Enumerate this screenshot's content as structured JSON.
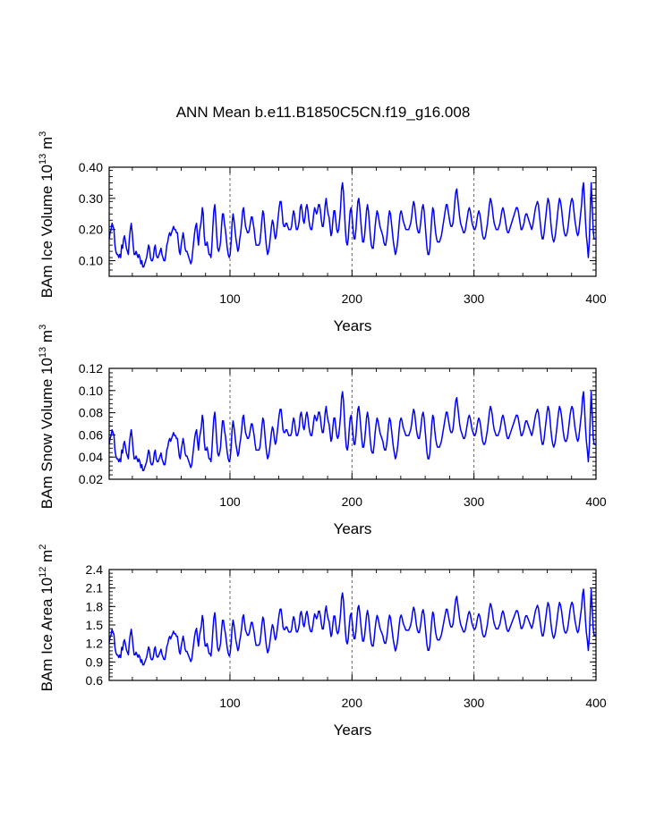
{
  "figure_title": "ANN Mean b.e11.B1850C5CN.f19_g16.008",
  "colors": {
    "series": "#0000ff",
    "axis": "#000000",
    "refline": "#555555"
  },
  "chart_data": [
    {
      "type": "line",
      "title": "ANN Mean b.e11.B1850C5CN.f19_g16.008",
      "ylabel_text": "BAm Ice Volume 10",
      "ylabel_exp": "13",
      "ylabel_unit": "m",
      "ylabel_unit_exp": "3",
      "xlabel": "Years",
      "xlim": [
        1,
        400
      ],
      "ylim": [
        0.05,
        0.4
      ],
      "yticks": [
        0.1,
        0.2,
        0.3,
        0.4
      ],
      "ytick_labels": [
        "0.10",
        "0.20",
        "0.30",
        "0.40"
      ],
      "xticks": [
        100,
        200,
        300,
        400
      ],
      "xtick_labels": [
        "100",
        "200",
        "300",
        "400"
      ],
      "reference_lines_x": [
        100,
        200,
        300
      ],
      "series": [
        {
          "name": "BAm Ice Volume",
          "values": [
            0.17,
            0.19,
            0.2,
            0.22,
            0.21,
            0.2,
            0.15,
            0.13,
            0.12,
            0.12,
            0.11,
            0.12,
            0.11,
            0.15,
            0.14,
            0.17,
            0.18,
            0.16,
            0.14,
            0.13,
            0.12,
            0.17,
            0.2,
            0.22,
            0.19,
            0.15,
            0.12,
            0.12,
            0.13,
            0.12,
            0.11,
            0.12,
            0.11,
            0.09,
            0.1,
            0.08,
            0.08,
            0.09,
            0.1,
            0.11,
            0.13,
            0.15,
            0.14,
            0.11,
            0.1,
            0.1,
            0.11,
            0.14,
            0.15,
            0.12,
            0.11,
            0.11,
            0.12,
            0.13,
            0.14,
            0.12,
            0.11,
            0.1,
            0.1,
            0.12,
            0.15,
            0.16,
            0.18,
            0.19,
            0.18,
            0.19,
            0.2,
            0.21,
            0.2,
            0.2,
            0.19,
            0.19,
            0.16,
            0.13,
            0.12,
            0.15,
            0.17,
            0.19,
            0.17,
            0.14,
            0.13,
            0.13,
            0.12,
            0.11,
            0.1,
            0.09,
            0.1,
            0.13,
            0.16,
            0.19,
            0.21,
            0.22,
            0.18,
            0.15,
            0.19,
            0.21,
            0.23,
            0.27,
            0.25,
            0.18,
            0.15,
            0.15,
            0.16,
            0.14,
            0.12,
            0.12,
            0.11,
            0.15,
            0.21,
            0.26,
            0.28,
            0.24,
            0.18,
            0.14,
            0.13,
            0.14,
            0.16,
            0.21,
            0.25,
            0.25,
            0.22,
            0.2,
            0.17,
            0.14,
            0.12,
            0.11,
            0.12,
            0.16,
            0.22,
            0.25,
            0.23,
            0.2,
            0.17,
            0.15,
            0.13,
            0.14,
            0.17,
            0.19,
            0.22,
            0.26,
            0.27,
            0.24,
            0.21,
            0.2,
            0.19,
            0.19,
            0.2,
            0.22,
            0.24,
            0.24,
            0.22,
            0.2,
            0.17,
            0.15,
            0.15,
            0.15,
            0.15,
            0.16,
            0.19,
            0.23,
            0.26,
            0.25,
            0.21,
            0.17,
            0.14,
            0.12,
            0.13,
            0.15,
            0.18,
            0.21,
            0.23,
            0.22,
            0.19,
            0.17,
            0.18,
            0.21,
            0.24,
            0.27,
            0.29,
            0.29,
            0.26,
            0.22,
            0.21,
            0.21,
            0.22,
            0.22,
            0.21,
            0.2,
            0.2,
            0.2,
            0.21,
            0.24,
            0.26,
            0.25,
            0.22,
            0.2,
            0.2,
            0.21,
            0.23,
            0.27,
            0.28,
            0.26,
            0.23,
            0.22,
            0.24,
            0.27,
            0.28,
            0.26,
            0.23,
            0.21,
            0.2,
            0.2,
            0.22,
            0.25,
            0.27,
            0.26,
            0.25,
            0.26,
            0.28,
            0.28,
            0.26,
            0.23,
            0.21,
            0.21,
            0.24,
            0.28,
            0.3,
            0.27,
            0.25,
            0.24,
            0.21,
            0.18,
            0.19,
            0.23,
            0.26,
            0.26,
            0.23,
            0.2,
            0.19,
            0.2,
            0.23,
            0.27,
            0.33,
            0.35,
            0.32,
            0.26,
            0.2,
            0.16,
            0.15,
            0.17,
            0.22,
            0.26,
            0.27,
            0.24,
            0.2,
            0.17,
            0.17,
            0.2,
            0.25,
            0.29,
            0.3,
            0.27,
            0.23,
            0.19,
            0.16,
            0.16,
            0.18,
            0.22,
            0.26,
            0.28,
            0.26,
            0.22,
            0.18,
            0.15,
            0.14,
            0.14,
            0.17,
            0.21,
            0.24,
            0.26,
            0.25,
            0.23,
            0.21,
            0.2,
            0.19,
            0.18,
            0.16,
            0.15,
            0.15,
            0.17,
            0.2,
            0.24,
            0.26,
            0.25,
            0.22,
            0.19,
            0.16,
            0.14,
            0.12,
            0.13,
            0.15,
            0.18,
            0.22,
            0.25,
            0.26,
            0.25,
            0.23,
            0.22,
            0.21,
            0.2,
            0.2,
            0.2,
            0.2,
            0.21,
            0.22,
            0.24,
            0.27,
            0.29,
            0.28,
            0.25,
            0.22,
            0.2,
            0.19,
            0.19,
            0.21,
            0.24,
            0.27,
            0.28,
            0.26,
            0.22,
            0.18,
            0.14,
            0.12,
            0.12,
            0.14,
            0.19,
            0.24,
            0.27,
            0.26,
            0.22,
            0.19,
            0.17,
            0.16,
            0.16,
            0.16,
            0.17,
            0.18,
            0.2,
            0.22,
            0.24,
            0.26,
            0.28,
            0.28,
            0.26,
            0.24,
            0.22,
            0.21,
            0.21,
            0.22,
            0.25,
            0.29,
            0.32,
            0.33,
            0.3,
            0.27,
            0.24,
            0.22,
            0.21,
            0.2,
            0.19,
            0.19,
            0.2,
            0.22,
            0.24,
            0.26,
            0.27,
            0.26,
            0.24,
            0.22,
            0.21,
            0.2,
            0.2,
            0.21,
            0.23,
            0.25,
            0.26,
            0.25,
            0.23,
            0.2,
            0.18,
            0.17,
            0.17,
            0.18,
            0.2,
            0.22,
            0.25,
            0.28,
            0.3,
            0.29,
            0.27,
            0.24,
            0.22,
            0.21,
            0.2,
            0.2,
            0.2,
            0.21,
            0.22,
            0.24,
            0.26,
            0.27,
            0.26,
            0.24,
            0.22,
            0.2,
            0.19,
            0.19,
            0.2,
            0.21,
            0.22,
            0.23,
            0.24,
            0.25,
            0.26,
            0.27,
            0.27,
            0.26,
            0.24,
            0.22,
            0.2,
            0.2,
            0.21,
            0.22,
            0.24,
            0.25,
            0.25,
            0.24,
            0.23,
            0.22,
            0.21,
            0.2,
            0.21,
            0.23,
            0.25,
            0.27,
            0.28,
            0.29,
            0.28,
            0.25,
            0.22,
            0.19,
            0.17,
            0.17,
            0.19,
            0.22,
            0.25,
            0.28,
            0.3,
            0.29,
            0.26,
            0.22,
            0.19,
            0.17,
            0.16,
            0.17,
            0.19,
            0.22,
            0.25,
            0.28,
            0.3,
            0.29,
            0.27,
            0.24,
            0.21,
            0.19,
            0.18,
            0.18,
            0.19,
            0.21,
            0.24,
            0.27,
            0.29,
            0.3,
            0.29,
            0.26,
            0.23,
            0.21,
            0.19,
            0.18,
            0.19,
            0.22,
            0.25,
            0.28,
            0.33,
            0.35,
            0.3,
            0.23,
            0.18,
            0.15,
            0.11,
            0.16,
            0.26,
            0.35,
            0.28,
            0.2,
            0.17,
            0.17,
            0.17
          ]
        }
      ]
    },
    {
      "type": "line",
      "ylabel_text": "BAm Snow Volume 10",
      "ylabel_exp": "13",
      "ylabel_unit": "m",
      "ylabel_unit_exp": "3",
      "xlabel": "Years",
      "xlim": [
        1,
        400
      ],
      "ylim": [
        0.02,
        0.12
      ],
      "yticks": [
        0.02,
        0.04,
        0.06,
        0.08,
        0.1,
        0.12
      ],
      "ytick_labels": [
        "0.02",
        "0.04",
        "0.06",
        "0.08",
        "0.10",
        "0.12"
      ],
      "xticks": [
        100,
        200,
        300,
        400
      ],
      "xtick_labels": [
        "100",
        "200",
        "300",
        "400"
      ],
      "reference_lines_x": [
        100,
        200,
        300
      ],
      "series": [
        {
          "name": "BAm Snow Volume",
          "values": []
        }
      ]
    },
    {
      "type": "line",
      "ylabel_text": "BAm Ice Area 10",
      "ylabel_exp": "12",
      "ylabel_unit": "m",
      "ylabel_unit_exp": "2",
      "xlabel": "Years",
      "xlim": [
        1,
        400
      ],
      "ylim": [
        0.6,
        2.4
      ],
      "yticks": [
        0.6,
        0.9,
        1.2,
        1.5,
        1.8,
        2.1,
        2.4
      ],
      "ytick_labels": [
        "0.6",
        "0.9",
        "1.2",
        "1.5",
        "1.8",
        "2.1",
        "2.4"
      ],
      "xticks": [
        100,
        200,
        300,
        400
      ],
      "xtick_labels": [
        "100",
        "200",
        "300",
        "400"
      ],
      "reference_lines_x": [
        100,
        200,
        300
      ],
      "series": [
        {
          "name": "BAm Ice Area",
          "values": []
        }
      ]
    }
  ]
}
